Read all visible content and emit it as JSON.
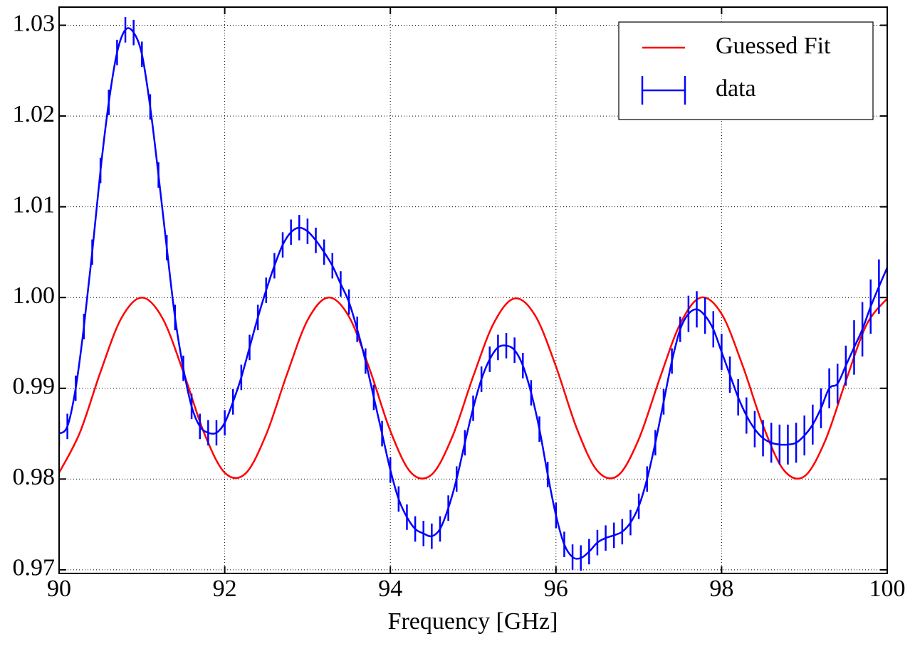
{
  "chart_data": {
    "type": "line",
    "x_label": "Frequency [GHz]",
    "xlim": [
      90,
      100
    ],
    "xticks": [
      90,
      92,
      94,
      96,
      98,
      100
    ],
    "ylim": [
      0.9696,
      1.032
    ],
    "yticks": [
      0.97,
      0.98,
      0.99,
      {
        "value": 1,
        "label": "1.00"
      },
      1.01,
      1.02,
      1.03
    ],
    "grid": true,
    "legend": "upper right",
    "series": [
      {
        "name": "Guessed Fit",
        "color": "#ff0000",
        "x": [
          90,
          90.25,
          90.5,
          90.75,
          91,
          91.25,
          91.5,
          91.75,
          92,
          92.25,
          92.5,
          92.75,
          93,
          93.25,
          93.5,
          93.75,
          94,
          94.25,
          94.5,
          94.75,
          95,
          95.25,
          95.5,
          95.75,
          96,
          96.25,
          96.5,
          96.75,
          97,
          97.25,
          97.5,
          97.75,
          98,
          98.25,
          98.5,
          98.75,
          99,
          99.25,
          99.5,
          99.75,
          100
        ],
        "values": [
          0.9807,
          0.9851,
          0.9918,
          0.9977,
          1.0,
          0.9977,
          0.9918,
          0.9851,
          0.9807,
          0.9806,
          0.9849,
          0.9915,
          0.9975,
          1.0,
          0.9979,
          0.9921,
          0.9853,
          0.9807,
          0.9805,
          0.9847,
          0.9913,
          0.9972,
          0.9999,
          0.998,
          0.9924,
          0.9856,
          0.9809,
          0.9804,
          0.9844,
          0.991,
          0.9971,
          1.0,
          0.9982,
          0.9926,
          0.9859,
          0.981,
          0.9803,
          0.9842,
          0.9908,
          0.997,
          0.9999
        ]
      },
      {
        "name": "data",
        "color": "#0000ff",
        "x": [
          90,
          90.1,
          90.2,
          90.3,
          90.4,
          90.5,
          90.6,
          90.7,
          90.8,
          90.9,
          91,
          91.1,
          91.2,
          91.3,
          91.4,
          91.5,
          91.6,
          91.7,
          91.8,
          91.9,
          92,
          92.1,
          92.2,
          92.3,
          92.4,
          92.5,
          92.6,
          92.7,
          92.8,
          92.9,
          93,
          93.1,
          93.2,
          93.3,
          93.4,
          93.5,
          93.6,
          93.7,
          93.8,
          93.9,
          94,
          94.1,
          94.2,
          94.3,
          94.4,
          94.5,
          94.6,
          94.7,
          94.8,
          94.9,
          95,
          95.1,
          95.2,
          95.3,
          95.4,
          95.5,
          95.6,
          95.7,
          95.8,
          95.9,
          96,
          96.1,
          96.2,
          96.3,
          96.4,
          96.5,
          96.6,
          96.7,
          96.8,
          96.9,
          97,
          97.1,
          97.2,
          97.3,
          97.4,
          97.5,
          97.6,
          97.7,
          97.8,
          97.9,
          98,
          98.1,
          98.2,
          98.3,
          98.4,
          98.5,
          98.6,
          98.7,
          98.8,
          98.9,
          99,
          99.1,
          99.2,
          99.3,
          99.4,
          99.5,
          99.6,
          99.7,
          99.8,
          99.9,
          100
        ],
        "values": [
          0.985,
          0.9858,
          0.99,
          0.9968,
          1.005,
          1.014,
          1.0215,
          1.027,
          1.0295,
          1.0292,
          1.0268,
          1.021,
          1.0135,
          1.0055,
          0.9978,
          0.9922,
          0.988,
          0.9858,
          0.9851,
          0.9851,
          0.9862,
          0.9885,
          0.9912,
          0.9945,
          0.9978,
          1.0008,
          1.0035,
          1.0058,
          1.0072,
          1.0077,
          1.0073,
          1.0063,
          1.005,
          1.0035,
          1.0015,
          0.9995,
          0.9965,
          0.993,
          0.989,
          0.985,
          0.981,
          0.9778,
          0.9758,
          0.9745,
          0.974,
          0.9737,
          0.9745,
          0.9768,
          0.98,
          0.984,
          0.9878,
          0.991,
          0.9932,
          0.9945,
          0.9947,
          0.9942,
          0.9925,
          0.9895,
          0.9855,
          0.9805,
          0.976,
          0.9728,
          0.9714,
          0.9713,
          0.972,
          0.973,
          0.9735,
          0.9738,
          0.9742,
          0.9752,
          0.977,
          0.98,
          0.984,
          0.9885,
          0.993,
          0.9965,
          0.9982,
          0.9987,
          0.998,
          0.9965,
          0.994,
          0.9915,
          0.989,
          0.987,
          0.9855,
          0.9845,
          0.984,
          0.9838,
          0.9838,
          0.984,
          0.9848,
          0.986,
          0.9878,
          0.99,
          0.9905,
          0.9925,
          0.9945,
          0.9965,
          0.999,
          1.0012,
          1.0033
        ],
        "errors": [
          0.0014,
          0.0014,
          0.0014,
          0.0014,
          0.0014,
          0.0014,
          0.0014,
          0.0014,
          0.0014,
          0.0014,
          0.0014,
          0.0014,
          0.0014,
          0.0014,
          0.0014,
          0.0014,
          0.0014,
          0.0014,
          0.0014,
          0.0014,
          0.0014,
          0.0014,
          0.0014,
          0.0014,
          0.0014,
          0.0014,
          0.0014,
          0.0014,
          0.0014,
          0.0014,
          0.0014,
          0.0014,
          0.0014,
          0.0014,
          0.0014,
          0.0014,
          0.0014,
          0.0014,
          0.0014,
          0.0014,
          0.0014,
          0.0014,
          0.0014,
          0.0014,
          0.0014,
          0.0014,
          0.0014,
          0.0014,
          0.0014,
          0.0014,
          0.0014,
          0.0014,
          0.0014,
          0.0014,
          0.0014,
          0.0014,
          0.0014,
          0.0014,
          0.0014,
          0.0014,
          0.0014,
          0.0014,
          0.0014,
          0.0014,
          0.0014,
          0.0014,
          0.0014,
          0.0014,
          0.0014,
          0.0014,
          0.0014,
          0.0014,
          0.0014,
          0.0014,
          0.0014,
          0.0014,
          0.002,
          0.002,
          0.002,
          0.002,
          0.002,
          0.002,
          0.002,
          0.002,
          0.002,
          0.002,
          0.0022,
          0.0022,
          0.0022,
          0.0022,
          0.0022,
          0.0022,
          0.0022,
          0.0022,
          0.0022,
          0.0022,
          0.003,
          0.003,
          0.003,
          0.003,
          0.003
        ]
      }
    ]
  }
}
